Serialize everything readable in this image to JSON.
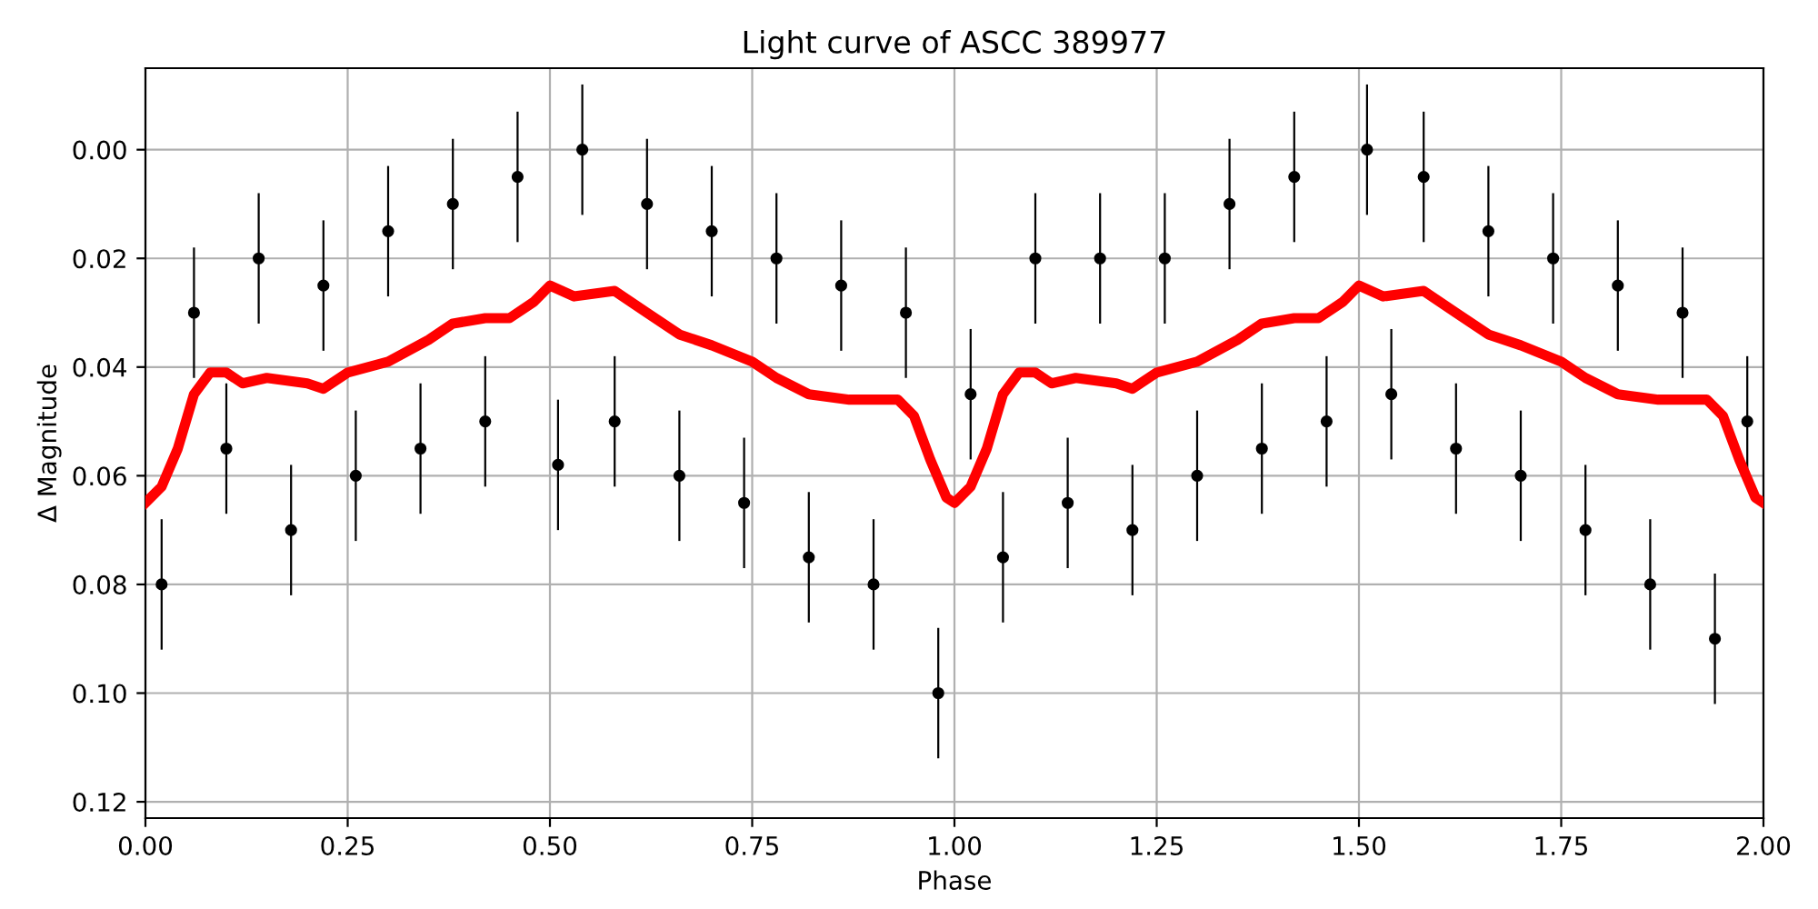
{
  "chart_data": {
    "type": "scatter",
    "title": "Light curve of ASCC 389977",
    "xlabel": "Phase",
    "ylabel": "Δ Magnitude",
    "xlim": [
      0,
      2
    ],
    "ylim": [
      0.123,
      -0.015
    ],
    "xticks": [
      {
        "value": 0,
        "label": "0.00"
      },
      {
        "value": 0.25,
        "label": "0.25"
      },
      {
        "value": 0.5,
        "label": "0.50"
      },
      {
        "value": 0.75,
        "label": "0.75"
      },
      {
        "value": 1,
        "label": "1.00"
      },
      {
        "value": 1.25,
        "label": "1.25"
      },
      {
        "value": 1.5,
        "label": "1.50"
      },
      {
        "value": 1.75,
        "label": "1.75"
      },
      {
        "value": 2,
        "label": "2.00"
      }
    ],
    "yticks": [
      {
        "value": 0,
        "label": "0.00"
      },
      {
        "value": 0.02,
        "label": "0.02"
      },
      {
        "value": 0.04,
        "label": "0.04"
      },
      {
        "value": 0.06,
        "label": "0.06"
      },
      {
        "value": 0.08,
        "label": "0.08"
      },
      {
        "value": 0.1,
        "label": "0.10"
      },
      {
        "value": 0.12,
        "label": "0.12"
      }
    ],
    "grid": true,
    "series": [
      {
        "color": "#000000",
        "marker": "circle",
        "x": [
          0.02,
          0.06,
          0.1,
          0.14,
          0.18,
          0.22,
          0.26,
          0.3,
          0.34,
          0.38,
          0.42,
          0.46,
          0.51,
          0.54,
          0.58,
          0.62,
          0.66,
          0.7,
          0.74,
          0.78,
          0.82,
          0.86,
          0.9,
          0.94,
          0.98,
          1.02,
          1.06,
          1.1,
          1.14,
          1.18,
          1.22,
          1.26,
          1.3,
          1.34,
          1.38,
          1.42,
          1.46,
          1.51,
          1.54,
          1.58,
          1.62,
          1.66,
          1.7,
          1.74,
          1.78,
          1.82,
          1.86,
          1.9,
          1.94,
          1.98
        ],
        "values": [
          0.08,
          0.03,
          0.055,
          0.02,
          0.07,
          0.025,
          0.06,
          0.015,
          0.055,
          0.01,
          0.05,
          0.005,
          0.058,
          0.0,
          0.05,
          0.01,
          0.06,
          0.015,
          0.065,
          0.02,
          0.075,
          0.025,
          0.08,
          0.03,
          0.1,
          0.045,
          0.075,
          0.02,
          0.065,
          0.02,
          0.07,
          0.02,
          0.06,
          0.01,
          0.055,
          0.005,
          0.05,
          0.0,
          0.045,
          0.005,
          0.055,
          0.015,
          0.06,
          0.02,
          0.07,
          0.025,
          0.08,
          0.03,
          0.09,
          0.05
        ],
        "errors": [
          0.012,
          0.012,
          0.012,
          0.012,
          0.012,
          0.012,
          0.012,
          0.012,
          0.012,
          0.012,
          0.012,
          0.012,
          0.012,
          0.012,
          0.012,
          0.012,
          0.012,
          0.012,
          0.012,
          0.012,
          0.012,
          0.012,
          0.012,
          0.012,
          0.012,
          0.012,
          0.012,
          0.012,
          0.012,
          0.012,
          0.012,
          0.012,
          0.012,
          0.012,
          0.012,
          0.012,
          0.012,
          0.012,
          0.012,
          0.012,
          0.012,
          0.012,
          0.012,
          0.012,
          0.012,
          0.012,
          0.012,
          0.012,
          0.012,
          0.012
        ]
      },
      {
        "type": "line",
        "color": "#ff0000",
        "marker": "none",
        "line_style": "solid",
        "x": [
          0,
          0.02,
          0.04,
          0.06,
          0.08,
          0.1,
          0.12,
          0.15,
          0.2,
          0.22,
          0.25,
          0.3,
          0.35,
          0.38,
          0.42,
          0.45,
          0.48,
          0.5,
          0.53,
          0.58,
          0.62,
          0.66,
          0.7,
          0.75,
          0.78,
          0.82,
          0.87,
          0.9,
          0.93,
          0.95,
          0.97,
          0.99,
          1.0,
          1.02,
          1.04,
          1.06,
          1.08,
          1.1,
          1.12,
          1.15,
          1.2,
          1.22,
          1.25,
          1.3,
          1.35,
          1.38,
          1.42,
          1.45,
          1.48,
          1.5,
          1.53,
          1.58,
          1.62,
          1.66,
          1.7,
          1.75,
          1.78,
          1.82,
          1.87,
          1.9,
          1.93,
          1.95,
          1.97,
          1.99,
          2.0
        ],
        "values": [
          0.065,
          0.062,
          0.055,
          0.045,
          0.041,
          0.041,
          0.043,
          0.042,
          0.043,
          0.044,
          0.041,
          0.039,
          0.035,
          0.032,
          0.031,
          0.031,
          0.028,
          0.025,
          0.027,
          0.026,
          0.03,
          0.034,
          0.036,
          0.039,
          0.042,
          0.045,
          0.046,
          0.046,
          0.046,
          0.049,
          0.057,
          0.064,
          0.065,
          0.062,
          0.055,
          0.045,
          0.041,
          0.041,
          0.043,
          0.042,
          0.043,
          0.044,
          0.041,
          0.039,
          0.035,
          0.032,
          0.031,
          0.031,
          0.028,
          0.025,
          0.027,
          0.026,
          0.03,
          0.034,
          0.036,
          0.039,
          0.042,
          0.045,
          0.046,
          0.046,
          0.046,
          0.049,
          0.057,
          0.064,
          0.065
        ]
      }
    ]
  }
}
